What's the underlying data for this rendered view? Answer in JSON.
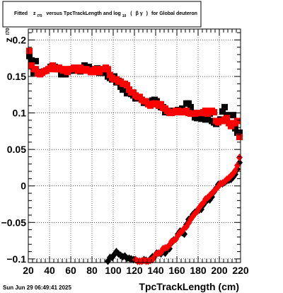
{
  "title": {
    "prefix": "Fitted",
    "symbol": "z",
    "symbol_sub": "I70",
    "middle": "versus TpcTrackLength and log",
    "log_sub": "10",
    "paren_open": "(",
    "beta_gamma": "β γ",
    "paren_close": ")",
    "suffix": "for Global deuteron"
  },
  "footer": {
    "timestamp": "Sun Jun 29 06:49:41 2025"
  },
  "chart_data": {
    "type": "scatter",
    "xlabel": "TpcTrackLength (cm)",
    "ylabel": "z",
    "ylabel_sub": "I70",
    "xlim": [
      20,
      220
    ],
    "ylim": [
      -0.105,
      0.215
    ],
    "grid": true,
    "x_ticks": [
      20,
      40,
      60,
      80,
      100,
      120,
      140,
      160,
      180,
      200,
      220
    ],
    "x_tick_labels": [
      "20",
      "40",
      "60",
      "80",
      "100",
      "120",
      "140",
      "160",
      "180",
      "200",
      "220"
    ],
    "y_ticks": [
      -0.1,
      -0.05,
      0,
      0.05,
      0.1,
      0.15,
      0.2
    ],
    "y_tick_labels": [
      "−0.1",
      "−0.05",
      "0",
      "0.05",
      "0.1",
      "0.15",
      "0.2"
    ],
    "series": [
      {
        "color": "#000000",
        "marker": "square",
        "points": [
          [
            21,
            0.178
          ],
          [
            23,
            0.172
          ],
          [
            25,
            0.155
          ],
          [
            27,
            0.171
          ],
          [
            29,
            0.155
          ],
          [
            31,
            0.156
          ],
          [
            37,
            0.158
          ],
          [
            41,
            0.163
          ],
          [
            45,
            0.163
          ],
          [
            49,
            0.16
          ],
          [
            51,
            0.153
          ],
          [
            53,
            0.153
          ],
          [
            55,
            0.153
          ],
          [
            57,
            0.158
          ],
          [
            59,
            0.158
          ],
          [
            63,
            0.158
          ],
          [
            65,
            0.16
          ],
          [
            69,
            0.157
          ],
          [
            73,
            0.165
          ],
          [
            77,
            0.163
          ],
          [
            79,
            0.16
          ],
          [
            81,
            0.158
          ],
          [
            83,
            0.158
          ],
          [
            85,
            0.161
          ],
          [
            87,
            0.155
          ],
          [
            89,
            0.157
          ],
          [
            91,
            0.155
          ],
          [
            93,
            0.155
          ],
          [
            95,
            0.15
          ],
          [
            97,
            0.148
          ],
          [
            99,
            0.146
          ],
          [
            101,
            0.15
          ],
          [
            103,
            0.142
          ],
          [
            105,
            0.144
          ],
          [
            107,
            0.136
          ],
          [
            109,
            0.132
          ],
          [
            111,
            0.132
          ],
          [
            113,
            0.127
          ],
          [
            115,
            0.128
          ],
          [
            117,
            0.126
          ],
          [
            119,
            0.124
          ],
          [
            121,
            0.12
          ],
          [
            123,
            0.121
          ],
          [
            125,
            0.12
          ],
          [
            127,
            0.118
          ],
          [
            129,
            0.114
          ],
          [
            131,
            0.114
          ],
          [
            133,
            0.116
          ],
          [
            135,
            0.116
          ],
          [
            137,
            0.117
          ],
          [
            139,
            0.118
          ],
          [
            141,
            0.116
          ],
          [
            143,
            0.11
          ],
          [
            145,
            0.108
          ],
          [
            147,
            0.108
          ],
          [
            149,
            0.101
          ],
          [
            151,
            0.103
          ],
          [
            153,
            0.103
          ],
          [
            155,
            0.103
          ],
          [
            157,
            0.101
          ],
          [
            159,
            0.103
          ],
          [
            161,
            0.104
          ],
          [
            163,
            0.103
          ],
          [
            165,
            0.106
          ],
          [
            167,
            0.101
          ],
          [
            169,
            0.113
          ],
          [
            171,
            0.113
          ],
          [
            173,
            0.108
          ],
          [
            175,
            0.1
          ],
          [
            177,
            0.094
          ],
          [
            179,
            0.093
          ],
          [
            181,
            0.093
          ],
          [
            183,
            0.092
          ],
          [
            185,
            0.099
          ],
          [
            187,
            0.091
          ],
          [
            189,
            0.093
          ],
          [
            191,
            0.099
          ],
          [
            193,
            0.089
          ],
          [
            195,
            0.087
          ],
          [
            197,
            0.085
          ],
          [
            199,
            0.089
          ],
          [
            201,
            0.091
          ],
          [
            203,
            0.102
          ],
          [
            205,
            0.108
          ],
          [
            207,
            0.097
          ],
          [
            211,
            0.083
          ],
          [
            213,
            0.097
          ],
          [
            215,
            0.079
          ],
          [
            217,
            0.073
          ],
          [
            219,
            0.073
          ]
        ]
      },
      {
        "color": "#ff0000",
        "marker": "square",
        "points": [
          [
            21,
            0.185
          ],
          [
            23,
            0.165
          ],
          [
            25,
            0.16
          ],
          [
            27,
            0.16
          ],
          [
            29,
            0.154
          ],
          [
            31,
            0.153
          ],
          [
            33,
            0.155
          ],
          [
            35,
            0.157
          ],
          [
            37,
            0.158
          ],
          [
            39,
            0.16
          ],
          [
            41,
            0.162
          ],
          [
            43,
            0.165
          ],
          [
            45,
            0.16
          ],
          [
            47,
            0.16
          ],
          [
            49,
            0.162
          ],
          [
            51,
            0.16
          ],
          [
            53,
            0.158
          ],
          [
            55,
            0.16
          ],
          [
            57,
            0.156
          ],
          [
            59,
            0.16
          ],
          [
            61,
            0.16
          ],
          [
            63,
            0.162
          ],
          [
            65,
            0.16
          ],
          [
            67,
            0.158
          ],
          [
            69,
            0.162
          ],
          [
            71,
            0.16
          ],
          [
            73,
            0.158
          ],
          [
            75,
            0.16
          ],
          [
            77,
            0.158
          ],
          [
            79,
            0.156
          ],
          [
            81,
            0.156
          ],
          [
            83,
            0.16
          ],
          [
            85,
            0.16
          ],
          [
            87,
            0.156
          ],
          [
            89,
            0.16
          ],
          [
            91,
            0.16
          ],
          [
            93,
            0.162
          ],
          [
            95,
            0.16
          ],
          [
            97,
            0.152
          ],
          [
            99,
            0.148
          ],
          [
            101,
            0.146
          ],
          [
            103,
            0.146
          ],
          [
            105,
            0.143
          ],
          [
            107,
            0.143
          ],
          [
            109,
            0.14
          ],
          [
            111,
            0.14
          ],
          [
            113,
            0.138
          ],
          [
            115,
            0.132
          ],
          [
            117,
            0.128
          ],
          [
            119,
            0.128
          ],
          [
            121,
            0.124
          ],
          [
            123,
            0.122
          ],
          [
            125,
            0.122
          ],
          [
            127,
            0.118
          ],
          [
            129,
            0.116
          ],
          [
            131,
            0.116
          ],
          [
            133,
            0.112
          ],
          [
            135,
            0.11
          ],
          [
            137,
            0.112
          ],
          [
            139,
            0.113
          ],
          [
            141,
            0.113
          ],
          [
            143,
            0.11
          ],
          [
            145,
            0.112
          ],
          [
            147,
            0.107
          ],
          [
            149,
            0.106
          ],
          [
            151,
            0.103
          ],
          [
            153,
            0.1
          ],
          [
            155,
            0.1
          ],
          [
            157,
            0.101
          ],
          [
            159,
            0.103
          ],
          [
            161,
            0.103
          ],
          [
            163,
            0.101
          ],
          [
            165,
            0.101
          ],
          [
            167,
            0.102
          ],
          [
            169,
            0.103
          ],
          [
            171,
            0.1
          ],
          [
            173,
            0.099
          ],
          [
            175,
            0.099
          ],
          [
            177,
            0.099
          ],
          [
            179,
            0.1
          ],
          [
            181,
            0.1
          ],
          [
            183,
            0.1
          ],
          [
            185,
            0.101
          ],
          [
            187,
            0.103
          ],
          [
            189,
            0.099
          ],
          [
            191,
            0.101
          ],
          [
            193,
            0.103
          ],
          [
            195,
            0.101
          ],
          [
            197,
            0.089
          ],
          [
            199,
            0.087
          ],
          [
            201,
            0.089
          ],
          [
            203,
            0.089
          ],
          [
            205,
            0.091
          ],
          [
            207,
            0.093
          ],
          [
            209,
            0.086
          ],
          [
            211,
            0.082
          ],
          [
            213,
            0.086
          ],
          [
            215,
            0.086
          ],
          [
            217,
            0.089
          ],
          [
            219,
            0.067
          ]
        ]
      },
      {
        "color": "#000000",
        "marker": "diamond",
        "points": [
          [
            95,
            -0.103
          ],
          [
            97,
            -0.098
          ],
          [
            99,
            -0.098
          ],
          [
            101,
            -0.094
          ],
          [
            103,
            -0.09
          ],
          [
            105,
            -0.093
          ],
          [
            107,
            -0.095
          ],
          [
            109,
            -0.097
          ],
          [
            111,
            -0.096
          ],
          [
            113,
            -0.099
          ],
          [
            115,
            -0.099
          ],
          [
            117,
            -0.1
          ],
          [
            119,
            -0.101
          ],
          [
            121,
            -0.101
          ],
          [
            123,
            -0.103
          ],
          [
            125,
            -0.103
          ],
          [
            127,
            -0.103
          ],
          [
            129,
            -0.101
          ],
          [
            131,
            -0.102
          ],
          [
            135,
            -0.1
          ],
          [
            137,
            -0.097
          ],
          [
            141,
            -0.092
          ],
          [
            143,
            -0.092
          ],
          [
            145,
            -0.093
          ],
          [
            147,
            -0.09
          ],
          [
            149,
            -0.092
          ],
          [
            151,
            -0.088
          ],
          [
            153,
            -0.086
          ],
          [
            155,
            -0.078
          ],
          [
            157,
            -0.074
          ],
          [
            161,
            -0.066
          ],
          [
            163,
            -0.062
          ],
          [
            165,
            -0.064
          ],
          [
            167,
            -0.066
          ],
          [
            169,
            -0.053
          ],
          [
            171,
            -0.046
          ],
          [
            173,
            -0.044
          ],
          [
            175,
            -0.039
          ],
          [
            177,
            -0.036
          ],
          [
            179,
            -0.034
          ],
          [
            181,
            -0.033
          ],
          [
            183,
            -0.032
          ],
          [
            185,
            -0.026
          ],
          [
            187,
            -0.022
          ],
          [
            189,
            -0.019
          ],
          [
            191,
            -0.019
          ],
          [
            193,
            -0.015
          ],
          [
            195,
            -0.008
          ],
          [
            197,
            -0.003
          ],
          [
            199,
            0.002
          ],
          [
            201,
            0.003
          ],
          [
            203,
            0.003
          ],
          [
            205,
            0.005
          ],
          [
            207,
            0.007
          ],
          [
            209,
            0.008
          ],
          [
            211,
            0.009
          ],
          [
            213,
            0.012
          ],
          [
            215,
            0.016
          ],
          [
            217,
            0.023
          ],
          [
            219,
            0.032
          ]
        ]
      },
      {
        "color": "#ff0000",
        "marker": "diamond",
        "points": [
          [
            121,
            -0.101
          ],
          [
            123,
            -0.103
          ],
          [
            125,
            -0.103
          ],
          [
            127,
            -0.103
          ],
          [
            129,
            -0.102
          ],
          [
            131,
            -0.103
          ],
          [
            133,
            -0.103
          ],
          [
            135,
            -0.102
          ],
          [
            137,
            -0.101
          ],
          [
            139,
            -0.097
          ],
          [
            141,
            -0.093
          ],
          [
            143,
            -0.092
          ],
          [
            145,
            -0.091
          ],
          [
            147,
            -0.086
          ],
          [
            149,
            -0.085
          ],
          [
            151,
            -0.084
          ],
          [
            153,
            -0.081
          ],
          [
            155,
            -0.076
          ],
          [
            157,
            -0.075
          ],
          [
            159,
            -0.073
          ],
          [
            161,
            -0.068
          ],
          [
            163,
            -0.064
          ],
          [
            165,
            -0.062
          ],
          [
            167,
            -0.058
          ],
          [
            169,
            -0.056
          ],
          [
            171,
            -0.051
          ],
          [
            173,
            -0.046
          ],
          [
            175,
            -0.042
          ],
          [
            177,
            -0.038
          ],
          [
            179,
            -0.035
          ],
          [
            181,
            -0.03
          ],
          [
            183,
            -0.026
          ],
          [
            185,
            -0.023
          ],
          [
            187,
            -0.018
          ],
          [
            189,
            -0.016
          ],
          [
            191,
            -0.013
          ],
          [
            193,
            -0.01
          ],
          [
            195,
            -0.007
          ],
          [
            197,
            -0.004
          ],
          [
            199,
            -0.001
          ],
          [
            201,
            0.003
          ],
          [
            203,
            0.004
          ],
          [
            205,
            0.006
          ],
          [
            207,
            0.009
          ],
          [
            209,
            0.011
          ],
          [
            211,
            0.014
          ],
          [
            213,
            0.017
          ],
          [
            215,
            0.021
          ],
          [
            217,
            0.028
          ],
          [
            219,
            0.039
          ]
        ]
      }
    ]
  }
}
